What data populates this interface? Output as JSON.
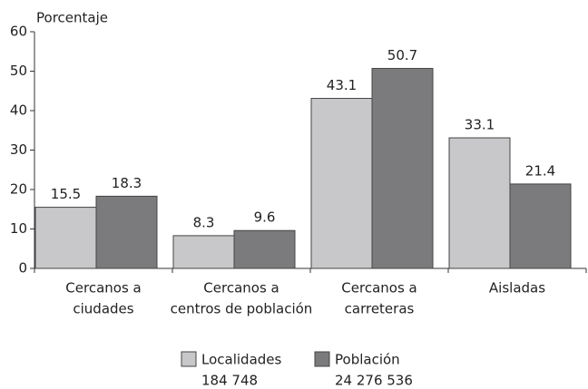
{
  "chart_data": {
    "type": "bar",
    "y_label": "Porcentaje",
    "categories": [
      [
        "Cercanos a",
        "ciudades"
      ],
      [
        "Cercanos a",
        "centros de población"
      ],
      [
        "Cercanos a",
        "carreteras"
      ],
      [
        "Aisladas"
      ]
    ],
    "series": [
      {
        "name": "Localidades",
        "detail": "184 748",
        "color": "#c8c8ca",
        "values": [
          15.5,
          8.3,
          43.1,
          33.1
        ]
      },
      {
        "name": "Población",
        "detail": "24 276 536",
        "color": "#7b7b7d",
        "values": [
          18.3,
          9.6,
          50.7,
          21.4
        ]
      }
    ],
    "ylim": [
      0,
      60
    ],
    "yticks": [
      0,
      10,
      20,
      30,
      40,
      50,
      60
    ],
    "grid": false
  }
}
